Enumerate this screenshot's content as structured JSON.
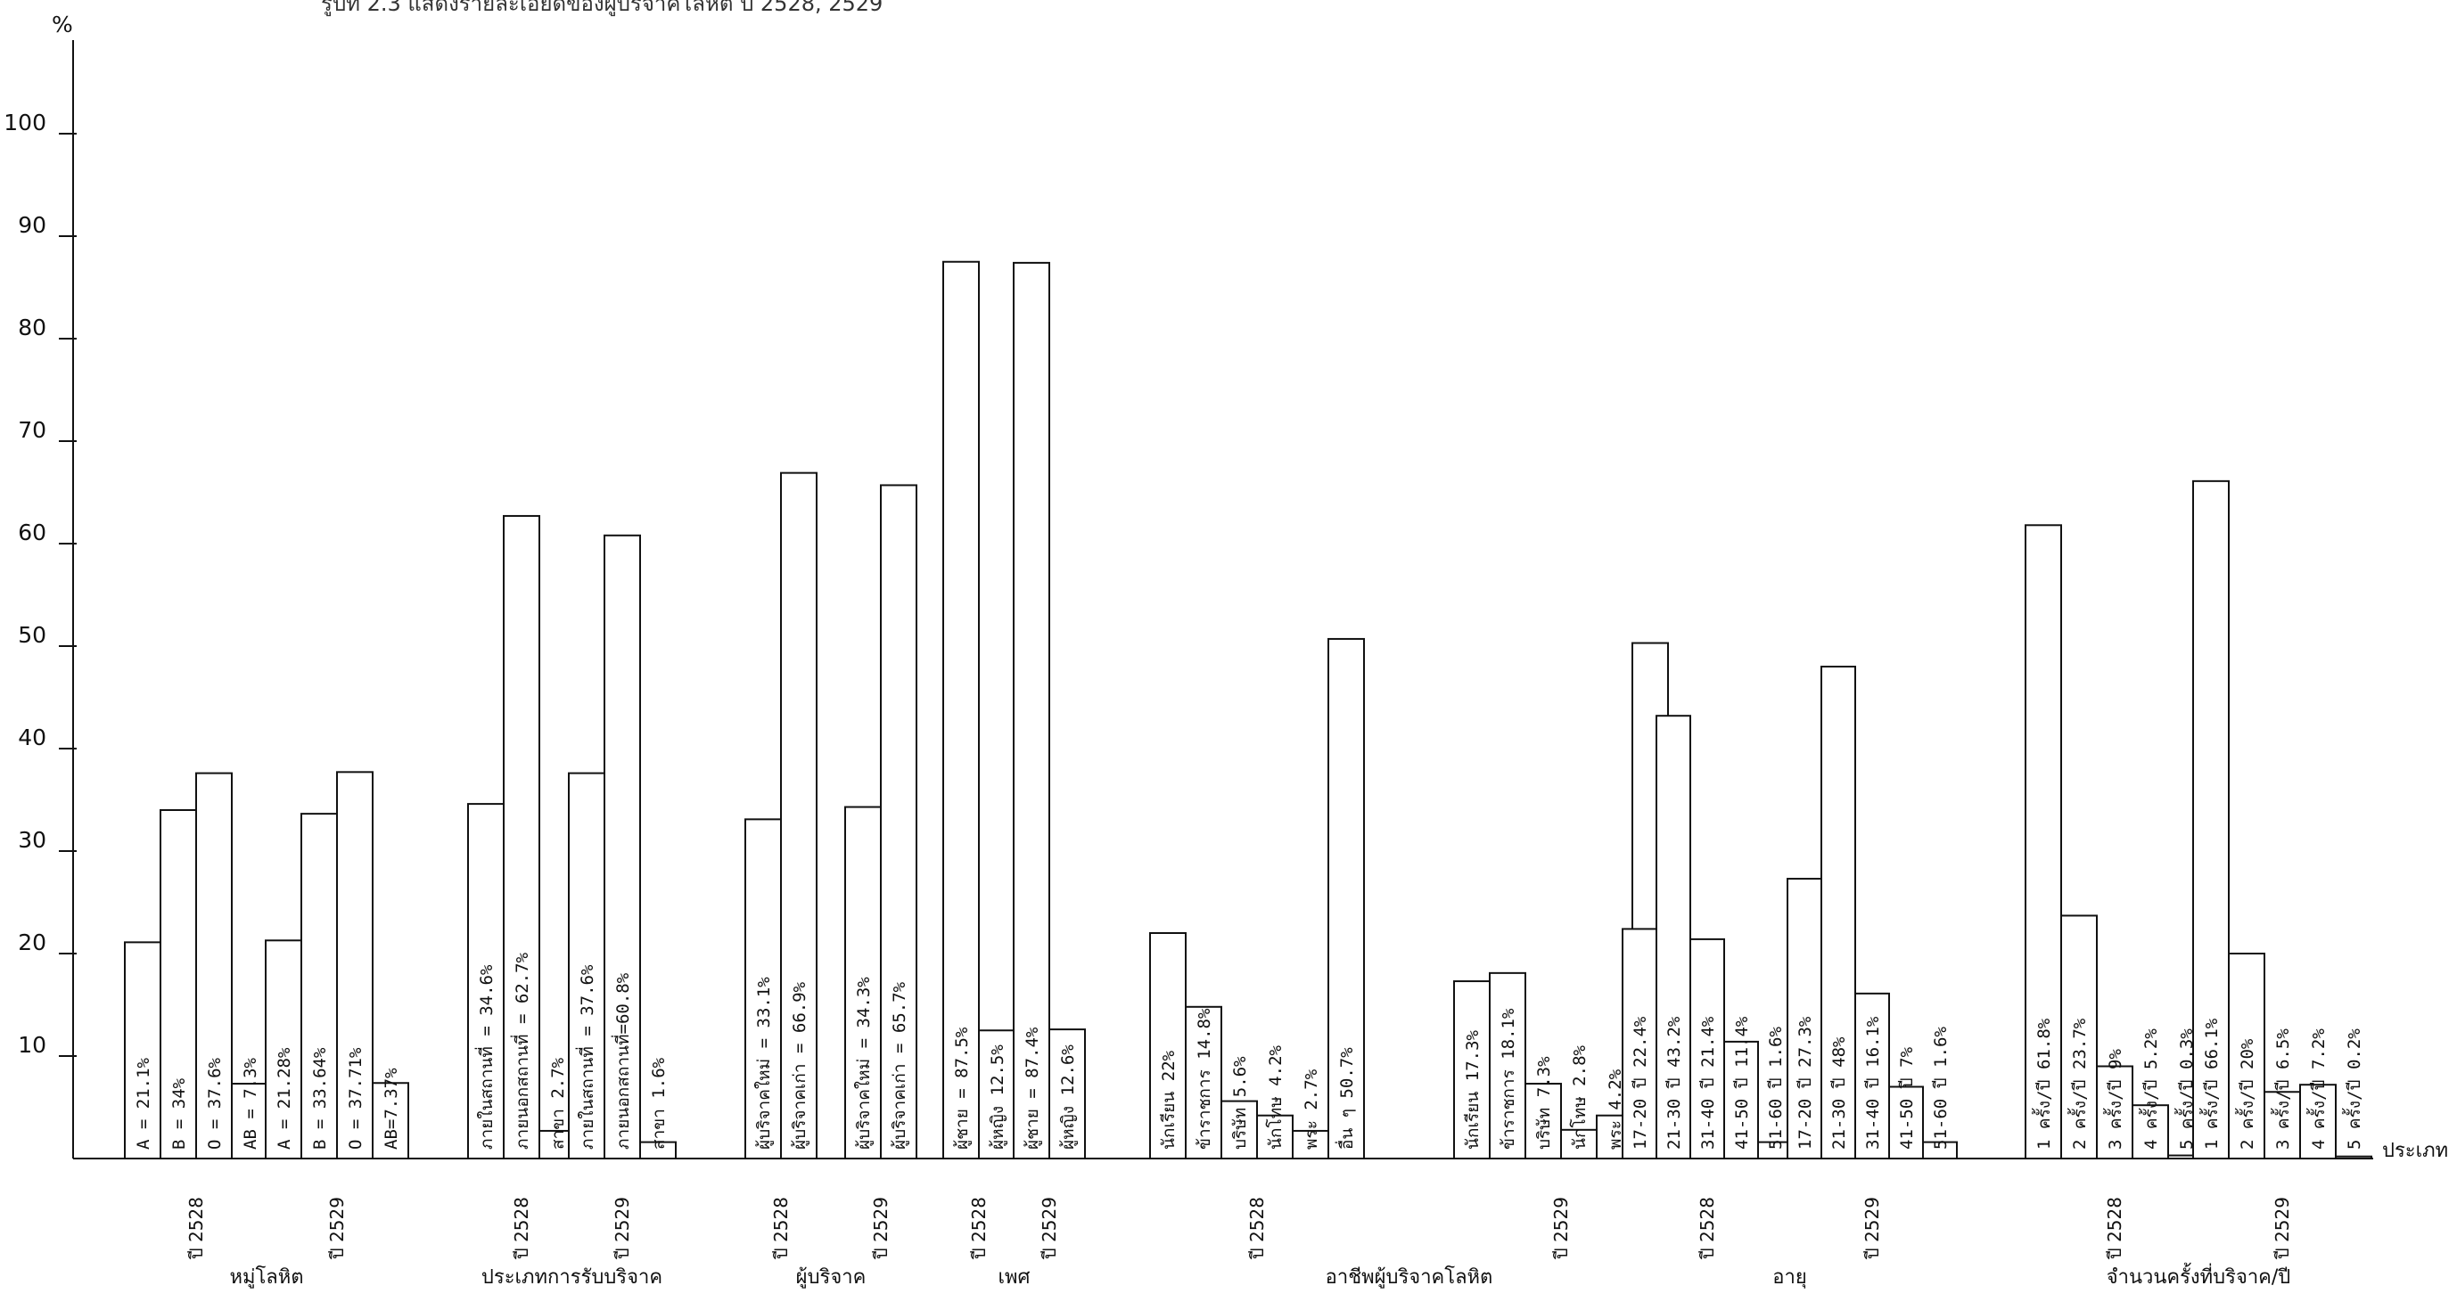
{
  "chart_data": {
    "type": "bar",
    "title": "รูปที่ 2.3   แสดงรายละเอียดของผู้บริจาคโลหิต ปี 2528, 2529",
    "ylabel": "%",
    "xlabel": "ประเภท",
    "ylim": [
      0,
      100
    ],
    "yticks": [
      10,
      20,
      30,
      40,
      50,
      60,
      70,
      80,
      90,
      100
    ],
    "groups": [
      {
        "category": "หมู่โลหิต",
        "years": [
          {
            "year": "ปี 2528",
            "bars": [
              {
                "label": "A = 21.1%",
                "value": 21.1
              },
              {
                "label": "B = 34%",
                "value": 34
              },
              {
                "label": "O = 37.6%",
                "value": 37.6
              },
              {
                "label": "AB = 7.3%",
                "value": 7.3
              }
            ]
          },
          {
            "year": "ปี 2529",
            "bars": [
              {
                "label": "A = 21.28%",
                "value": 21.28
              },
              {
                "label": "B = 33.64%",
                "value": 33.64
              },
              {
                "label": "O = 37.71%",
                "value": 37.71
              },
              {
                "label": "AB=7.37%",
                "value": 7.37
              }
            ]
          }
        ]
      },
      {
        "category": "ประเภทการรับบริจาค",
        "years": [
          {
            "year": "ปี 2528",
            "bars": [
              {
                "label": "ภายในสถานที่ = 34.6%",
                "value": 34.6
              },
              {
                "label": "ภายนอกสถานที่ = 62.7%",
                "value": 62.7
              },
              {
                "label": "สาขา 2.7%",
                "value": 2.7
              }
            ]
          },
          {
            "year": "ปี 2529",
            "bars": [
              {
                "label": "ภายในสถานที่ = 37.6%",
                "value": 37.6
              },
              {
                "label": "ภายนอกสถานที่=60.8%",
                "value": 60.8
              },
              {
                "label": "สาขา 1.6%",
                "value": 1.6
              }
            ]
          }
        ]
      },
      {
        "category": "ผู้บริจาค",
        "years": [
          {
            "year": "ปี 2528",
            "bars": [
              {
                "label": "ผู้บริจาคใหม่ = 33.1%",
                "value": 33.1
              },
              {
                "label": "ผู้บริจาคเก่า = 66.9%",
                "value": 66.9
              }
            ]
          },
          {
            "year": "ปี 2529",
            "bars": [
              {
                "label": "ผู้บริจาคใหม่ = 34.3%",
                "value": 34.3
              },
              {
                "label": "ผู้บริจาคเก่า = 65.7%",
                "value": 65.7
              }
            ]
          }
        ]
      },
      {
        "category": "เพศ",
        "years": [
          {
            "year": "ปี 2528",
            "bars": [
              {
                "label": "ผู้ชาย = 87.5%",
                "value": 87.5
              },
              {
                "label": "ผู้หญิง 12.5%",
                "value": 12.5
              }
            ]
          },
          {
            "year": "ปี 2529",
            "bars": [
              {
                "label": "ผู้ชาย = 87.4%",
                "value": 87.4
              },
              {
                "label": "ผู้หญิง 12.6%",
                "value": 12.6
              }
            ]
          }
        ]
      },
      {
        "category": "อาชีพผู้บริจาคโลหิต",
        "years": [
          {
            "year": "ปี 2528",
            "bars": [
              {
                "label": "นักเรียน 22%",
                "value": 22
              },
              {
                "label": "ข้าราชการ 14.8%",
                "value": 14.8
              },
              {
                "label": "บริษัท 5.6%",
                "value": 5.6
              },
              {
                "label": "นักโทษ 4.2%",
                "value": 4.2
              },
              {
                "label": "พระ 2.7%",
                "value": 2.7
              },
              {
                "label": "อื่น ๆ 50.7%",
                "value": 50.7
              }
            ]
          },
          {
            "year": "ปี 2529",
            "bars": [
              {
                "label": "นักเรียน 17.3%",
                "value": 17.3
              },
              {
                "label": "ข้าราชการ 18.1%",
                "value": 18.1
              },
              {
                "label": "บริษัท 7.3%",
                "value": 7.3
              },
              {
                "label": "นักโทษ 2.8%",
                "value": 2.8
              },
              {
                "label": "พระ 4.2%",
                "value": 4.2
              },
              {
                "label": "อื่น ๆ 50.3%",
                "value": 50.3
              }
            ]
          }
        ]
      },
      {
        "category": "อายุ",
        "years": [
          {
            "year": "ปี 2528",
            "bars": [
              {
                "label": "17-20 ปี 22.4%",
                "value": 22.4
              },
              {
                "label": "21-30 ปี 43.2%",
                "value": 43.2
              },
              {
                "label": "31-40 ปี 21.4%",
                "value": 21.4
              },
              {
                "label": "41-50 ปี 11.4%",
                "value": 11.4
              },
              {
                "label": "51-60 ปี 1.6%",
                "value": 1.6
              }
            ]
          },
          {
            "year": "ปี 2529",
            "bars": [
              {
                "label": "17-20 ปี 27.3%",
                "value": 27.3
              },
              {
                "label": "21-30 ปี 48%",
                "value": 48
              },
              {
                "label": "31-40 ปี 16.1%",
                "value": 16.1
              },
              {
                "label": "41-50 ปี 7%",
                "value": 7
              },
              {
                "label": "51-60 ปี 1.6%",
                "value": 1.6
              }
            ]
          }
        ]
      },
      {
        "category": "จำนวนครั้งที่บริจาค/ปี",
        "years": [
          {
            "year": "ปี 2528",
            "bars": [
              {
                "label": "1 ครั้ง/ปี 61.8%",
                "value": 61.8
              },
              {
                "label": "2 ครั้ง/ปี 23.7%",
                "value": 23.7
              },
              {
                "label": "3 ครั้ง/ปี 9%",
                "value": 9
              },
              {
                "label": "4 ครั้ง/ปี 5.2%",
                "value": 5.2
              },
              {
                "label": "5 ครั้ง/ปี 0.3%",
                "value": 0.3
              }
            ]
          },
          {
            "year": "ปี 2529",
            "bars": [
              {
                "label": "1 ครั้ง/ปี 66.1%",
                "value": 66.1
              },
              {
                "label": "2 ครั้ง/ปี 20%",
                "value": 20
              },
              {
                "label": "3 ครั้ง/ปี 6.5%",
                "value": 6.5
              },
              {
                "label": "4 ครั้ง/ปี 7.2%",
                "value": 7.2
              },
              {
                "label": "5 ครั้ง/ปี 0.2%",
                "value": 0.2
              }
            ]
          }
        ]
      }
    ]
  }
}
